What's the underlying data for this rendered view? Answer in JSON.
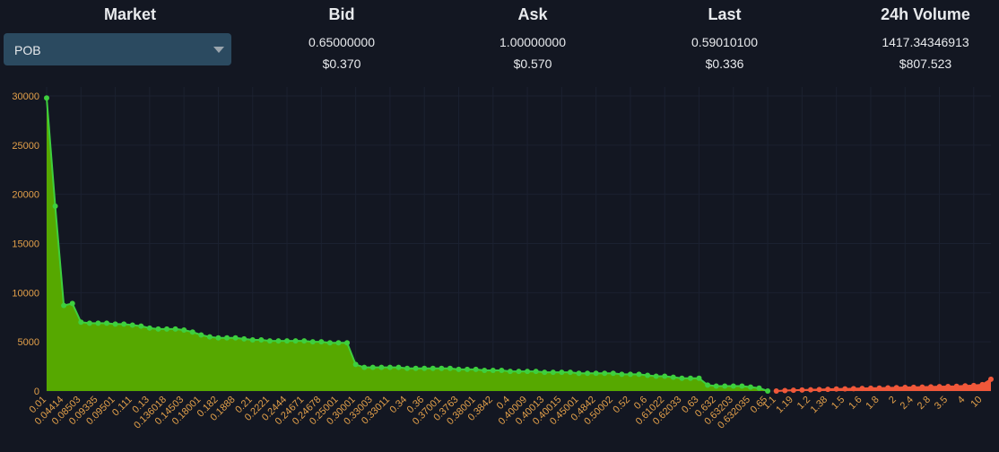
{
  "header": {
    "columns": [
      {
        "label": "Market"
      },
      {
        "label": "Bid",
        "value": "0.65000000",
        "usd": "$0.370"
      },
      {
        "label": "Ask",
        "value": "1.00000000",
        "usd": "$0.570"
      },
      {
        "label": "Last",
        "value": "0.59010100",
        "usd": "$0.336"
      },
      {
        "label": "24h Volume",
        "value": "1417.34346913",
        "usd": "$807.523"
      }
    ],
    "market_select": "POB"
  },
  "chart_data": {
    "type": "area",
    "categories": [
      "0.01",
      null,
      "0.04414",
      null,
      "0.08503",
      null,
      "0.09335",
      null,
      "0.09501",
      null,
      "0.111",
      null,
      "0.13",
      null,
      "0.136018",
      null,
      "0.14503",
      null,
      "0.18001",
      null,
      "0.182",
      null,
      "0.1888",
      null,
      "0.21",
      null,
      "0.2221",
      null,
      "0.2444",
      null,
      "0.24671",
      null,
      "0.24678",
      null,
      "0.25001",
      null,
      "0.30001",
      null,
      "0.33003",
      null,
      "0.33011",
      null,
      "0.34",
      null,
      "0.36",
      null,
      "0.37001",
      null,
      "0.3763",
      null,
      "0.38001",
      null,
      "0.3842",
      null,
      "0.4",
      null,
      "0.40009",
      null,
      "0.40013",
      null,
      "0.40015",
      null,
      "0.45001",
      null,
      "0.4842",
      null,
      "0.50002",
      null,
      "0.52",
      null,
      "0.6",
      null,
      "0.61022",
      null,
      "0.62033",
      null,
      "0.63",
      null,
      "0.632",
      null,
      "0.63203",
      null,
      "0.632035",
      null,
      "0.65",
      "1.1",
      null,
      "1.19",
      null,
      "1.2",
      null,
      "1.38",
      null,
      "1.5",
      null,
      "1.6",
      null,
      "1.8",
      null,
      "2",
      null,
      "2.4",
      null,
      "2.8",
      null,
      "3.5",
      null,
      "4",
      null,
      "10",
      null
    ],
    "series": [
      {
        "color": "#3ecf3e",
        "fill": "#56a800",
        "values": [
          29800,
          18800,
          8700,
          8900,
          7000,
          6900,
          6900,
          6900,
          6800,
          6800,
          6700,
          6600,
          6400,
          6300,
          6300,
          6300,
          6200,
          6000,
          5700,
          5500,
          5400,
          5400,
          5400,
          5300,
          5200,
          5200,
          5100,
          5100,
          5100,
          5100,
          5100,
          5000,
          5000,
          4900,
          4900,
          4900,
          2700,
          2400,
          2400,
          2400,
          2400,
          2400,
          2300,
          2300,
          2300,
          2300,
          2300,
          2300,
          2200,
          2200,
          2200,
          2100,
          2100,
          2100,
          2000,
          2000,
          2000,
          2000,
          1900,
          1900,
          1900,
          1900,
          1800,
          1800,
          1800,
          1800,
          1800,
          1700,
          1700,
          1700,
          1600,
          1500,
          1500,
          1400,
          1300,
          1300,
          1300,
          600,
          500,
          500,
          500,
          500,
          400,
          300,
          0,
          null,
          null,
          null,
          null,
          null,
          null,
          null,
          null,
          null,
          null,
          null,
          null,
          null,
          null,
          null,
          null,
          null,
          null,
          null,
          null,
          null,
          null,
          null,
          null,
          null,
          null
        ]
      },
      {
        "color": "#f0583a",
        "fill": "#f0583a",
        "values": [
          null,
          null,
          null,
          null,
          null,
          null,
          null,
          null,
          null,
          null,
          null,
          null,
          null,
          null,
          null,
          null,
          null,
          null,
          null,
          null,
          null,
          null,
          null,
          null,
          null,
          null,
          null,
          null,
          null,
          null,
          null,
          null,
          null,
          null,
          null,
          null,
          null,
          null,
          null,
          null,
          null,
          null,
          null,
          null,
          null,
          null,
          null,
          null,
          null,
          null,
          null,
          null,
          null,
          null,
          null,
          null,
          null,
          null,
          null,
          null,
          null,
          null,
          null,
          null,
          null,
          null,
          null,
          null,
          null,
          null,
          null,
          null,
          null,
          null,
          null,
          null,
          null,
          null,
          null,
          null,
          null,
          null,
          null,
          null,
          null,
          0,
          50,
          80,
          100,
          120,
          150,
          170,
          200,
          220,
          240,
          260,
          280,
          300,
          320,
          340,
          360,
          380,
          400,
          420,
          440,
          460,
          480,
          520,
          560,
          650,
          1200
        ]
      }
    ],
    "ylim": [
      0,
      30000
    ],
    "yticks": [
      0,
      5000,
      10000,
      15000,
      20000,
      25000,
      30000
    ],
    "grid": true
  }
}
